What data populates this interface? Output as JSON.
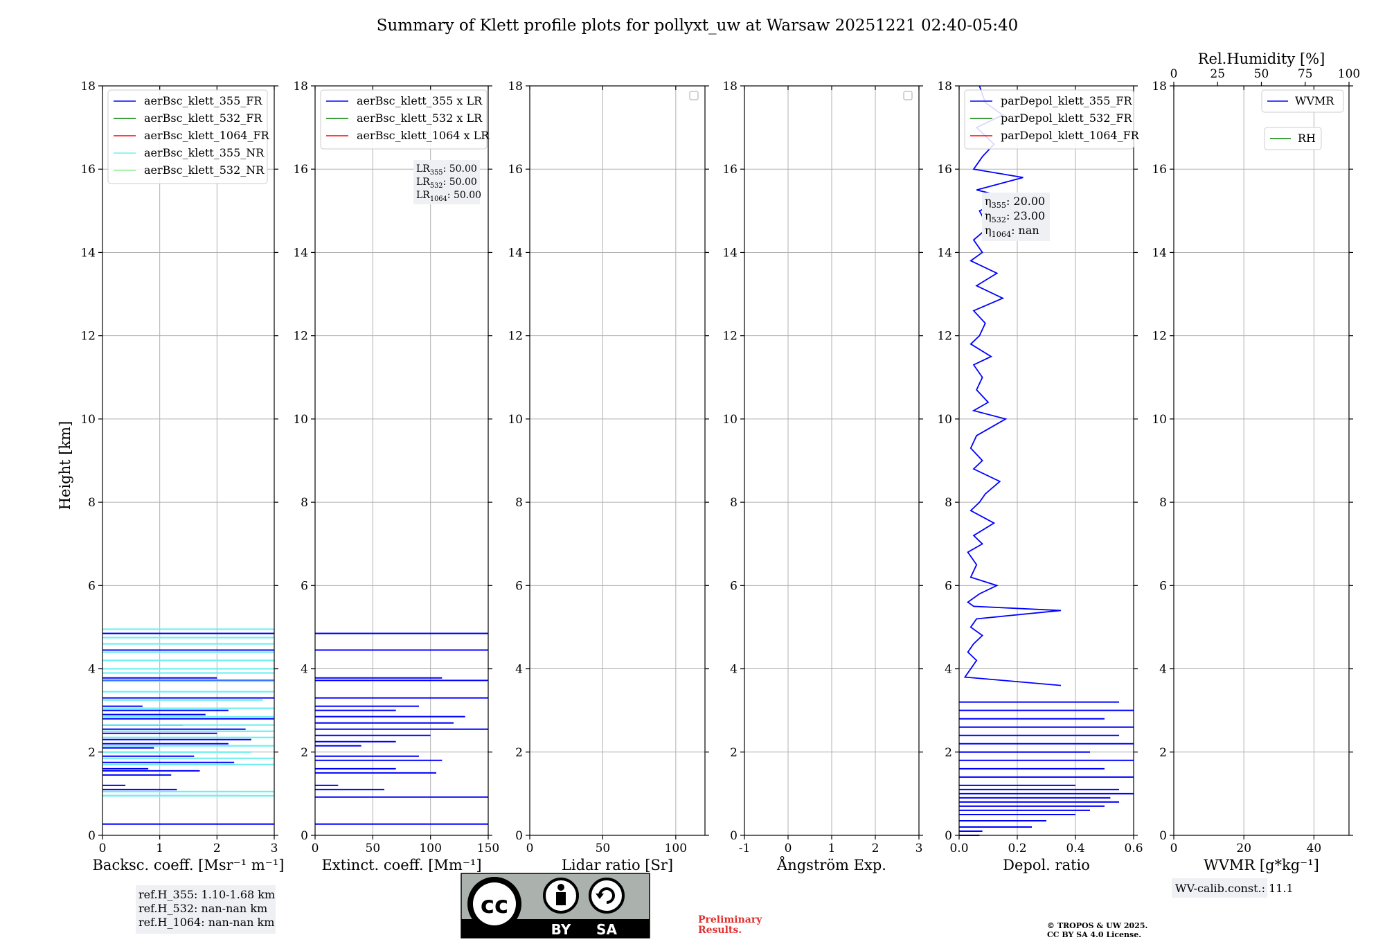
{
  "figure": {
    "title": "Summary of Klett profile plots for pollyxt_uw at Warsaw 20251221 02:40-05:40",
    "ylabel": "Height [km]"
  },
  "chart_data": [
    {
      "type": "line",
      "id": "backscatter",
      "xlabel": "Backsc. coeff. [Msr⁻¹ m⁻¹]",
      "xlim": [
        0,
        3
      ],
      "xticks": [
        0,
        1,
        2,
        3
      ],
      "ylim": [
        0,
        18
      ],
      "yticks": [
        0,
        2,
        4,
        6,
        8,
        10,
        12,
        14,
        16,
        18
      ],
      "legend": [
        "aerBsc_klett_355_FR",
        "aerBsc_klett_532_FR",
        "aerBsc_klett_1064_FR",
        "aerBsc_klett_355_NR",
        "aerBsc_klett_532_NR"
      ],
      "series": [
        {
          "name": "aerBsc_klett_355_FR",
          "color": "#0000ff",
          "y": [
            0.27,
            0.95,
            1.1,
            1.2,
            1.45,
            1.55,
            1.6,
            1.75,
            1.9,
            2.1,
            2.2,
            2.3,
            2.45,
            2.55,
            2.65,
            2.8,
            2.9,
            3.0,
            3.1,
            3.3,
            3.72,
            3.78,
            4.45,
            4.85
          ],
          "x": [
            3.0,
            2.4,
            1.3,
            0.4,
            1.2,
            1.7,
            0.8,
            2.3,
            1.6,
            0.9,
            2.2,
            2.6,
            2.0,
            2.5,
            1.4,
            3.0,
            1.8,
            2.2,
            0.7,
            3.0,
            3.0,
            2.0,
            3.0,
            3.0
          ]
        },
        {
          "name": "aerBsc_klett_532_FR",
          "color": "#008000",
          "y": [],
          "x": []
        },
        {
          "name": "aerBsc_klett_1064_FR",
          "color": "#ff0000",
          "y": [],
          "x": []
        },
        {
          "name": "aerBsc_klett_355_NR",
          "color": "#6ef0f0",
          "y": [
            0.95,
            1.05,
            1.7,
            1.85,
            2.0,
            2.15,
            2.35,
            2.5,
            2.65,
            2.85,
            3.05,
            3.25,
            3.45,
            3.7,
            3.9,
            4.0,
            4.2,
            4.4,
            4.6,
            4.75,
            4.95
          ],
          "x": [
            3.0,
            3.0,
            3.0,
            3.0,
            2.6,
            3.0,
            3.0,
            3.0,
            3.0,
            3.0,
            3.0,
            2.8,
            3.0,
            3.0,
            3.0,
            3.0,
            3.0,
            3.0,
            3.0,
            3.0,
            3.0
          ]
        },
        {
          "name": "aerBsc_klett_532_NR",
          "color": "#90ee90",
          "y": [],
          "x": []
        }
      ],
      "note": {
        "lines": [
          "ref.H_355: 1.10-1.68 km",
          "ref.H_532: nan-nan km",
          "ref.H_1064: nan-nan km"
        ]
      }
    },
    {
      "type": "line",
      "id": "extinction",
      "xlabel": "Extinct. coeff. [Mm⁻¹]",
      "xlim": [
        0,
        150
      ],
      "xticks": [
        0,
        50,
        100,
        150
      ],
      "ylim": [
        0,
        18
      ],
      "yticks": [
        0,
        2,
        4,
        6,
        8,
        10,
        12,
        14,
        16,
        18
      ],
      "legend": [
        "aerBsc_klett_355 x LR",
        "aerBsc_klett_532 x LR",
        "aerBsc_klett_1064 x LR"
      ],
      "series": [
        {
          "name": "aerBsc_klett_355 x LR",
          "color": "#0000ff",
          "y": [
            0.27,
            0.92,
            1.1,
            1.2,
            1.5,
            1.6,
            1.8,
            1.9,
            2.15,
            2.25,
            2.4,
            2.55,
            2.7,
            2.85,
            3.0,
            3.1,
            3.3,
            3.72,
            3.78,
            4.45,
            4.85
          ],
          "x": [
            150,
            150,
            60,
            20,
            105,
            70,
            110,
            90,
            40,
            70,
            100,
            150,
            120,
            130,
            70,
            90,
            150,
            150,
            110,
            150,
            150
          ]
        },
        {
          "name": "aerBsc_klett_532 x LR",
          "color": "#008000",
          "y": [],
          "x": []
        },
        {
          "name": "aerBsc_klett_1064 x LR",
          "color": "#ff0000",
          "y": [],
          "x": []
        }
      ],
      "note": {
        "lines": [
          "LR355: 50.00",
          "LR532: 50.00",
          "LR1064: 50.00"
        ]
      }
    },
    {
      "type": "line",
      "id": "lidar_ratio",
      "xlabel": "Lidar ratio [Sr]",
      "xlim": [
        0,
        120
      ],
      "xticks": [
        0,
        50,
        100
      ],
      "ylim": [
        0,
        18
      ],
      "yticks": [
        0,
        2,
        4,
        6,
        8,
        10,
        12,
        14,
        16,
        18
      ],
      "legend": [],
      "series": []
    },
    {
      "type": "line",
      "id": "angstrom",
      "xlabel": "Ångström Exp.",
      "xlim": [
        -1,
        3
      ],
      "xticks": [
        -1,
        0,
        1,
        2,
        3
      ],
      "ylim": [
        0,
        18
      ],
      "yticks": [
        0,
        2,
        4,
        6,
        8,
        10,
        12,
        14,
        16,
        18
      ],
      "legend": [],
      "series": []
    },
    {
      "type": "line",
      "id": "depol",
      "xlabel": "Depol. ratio",
      "xlim": [
        0,
        0.6
      ],
      "xticks": [
        0.0,
        0.2,
        0.4,
        0.6
      ],
      "xtick_labels": [
        "0.0",
        "0.2",
        "0.4",
        "0.6"
      ],
      "ylim": [
        0,
        18
      ],
      "yticks": [
        0,
        2,
        4,
        6,
        8,
        10,
        12,
        14,
        16,
        18
      ],
      "legend": [
        "parDepol_klett_355_FR",
        "parDepol_klett_532_FR",
        "parDepol_klett_1064_FR"
      ],
      "series": [
        {
          "name": "parDepol_klett_355_FR",
          "color": "#0000ff",
          "y": [
            0.0,
            0.1,
            0.2,
            0.35,
            0.5,
            0.6,
            0.7,
            0.8,
            0.9,
            1.0,
            1.1,
            1.2,
            1.4,
            1.6,
            1.8,
            2.0,
            2.2,
            2.4,
            2.6,
            2.8,
            3.0,
            3.2,
            3.6,
            3.8,
            4.0,
            4.2,
            4.4,
            4.6,
            4.8,
            5.0,
            5.2,
            5.4,
            5.5,
            5.6,
            5.8,
            6.0,
            6.2,
            6.5,
            6.8,
            7.0,
            7.2,
            7.5,
            7.8,
            8.0,
            8.2,
            8.5,
            8.8,
            9.0,
            9.3,
            9.6,
            10.0,
            10.2,
            10.4,
            10.7,
            11.0,
            11.3,
            11.5,
            11.8,
            12.0,
            12.3,
            12.6,
            12.9,
            13.2,
            13.5,
            13.8,
            14.0,
            14.3,
            14.6,
            15.0,
            15.3,
            15.5,
            15.8,
            16.0,
            16.3,
            16.6,
            17.0,
            17.3,
            17.6,
            18.0
          ],
          "x": [
            0.07,
            0.08,
            0.25,
            0.3,
            0.4,
            0.45,
            0.5,
            0.55,
            0.52,
            0.6,
            0.55,
            0.4,
            0.6,
            0.5,
            0.6,
            0.45,
            0.6,
            0.55,
            0.6,
            0.5,
            0.6,
            0.55,
            0.35,
            0.02,
            0.04,
            0.06,
            0.03,
            0.05,
            0.08,
            0.04,
            0.06,
            0.35,
            0.05,
            0.03,
            0.07,
            0.13,
            0.04,
            0.06,
            0.03,
            0.08,
            0.05,
            0.12,
            0.04,
            0.07,
            0.09,
            0.14,
            0.05,
            0.08,
            0.04,
            0.06,
            0.16,
            0.05,
            0.1,
            0.06,
            0.08,
            0.05,
            0.11,
            0.04,
            0.07,
            0.09,
            0.05,
            0.15,
            0.06,
            0.13,
            0.04,
            0.08,
            0.05,
            0.1,
            0.07,
            0.18,
            0.06,
            0.22,
            0.05,
            0.08,
            0.12,
            0.06,
            0.15,
            0.09,
            0.07
          ]
        },
        {
          "name": "parDepol_klett_532_FR",
          "color": "#008000",
          "y": [],
          "x": []
        },
        {
          "name": "parDepol_klett_1064_FR",
          "color": "#ff0000",
          "y": [],
          "x": []
        }
      ],
      "note": {
        "lines": [
          "η355: 20.00",
          "η532: 23.00",
          "η1064: nan"
        ]
      }
    },
    {
      "type": "line",
      "id": "wvmr",
      "xlabel": "WVMR [g*kg⁻¹]",
      "xlim": [
        0,
        50
      ],
      "xticks": [
        0,
        20,
        40
      ],
      "ylim": [
        0,
        18
      ],
      "yticks": [
        0,
        2,
        4,
        6,
        8,
        10,
        12,
        14,
        16,
        18
      ],
      "top_xlabel": "Rel.Humidity [%]",
      "top_xlim": [
        0,
        100
      ],
      "top_xticks": [
        0,
        25,
        50,
        75,
        100
      ],
      "legend": [
        "WVMR",
        "RH"
      ],
      "series": [
        {
          "name": "WVMR",
          "color": "#0000ff",
          "y": [],
          "x": []
        },
        {
          "name": "RH",
          "color": "#008000",
          "y": [],
          "x": []
        }
      ],
      "note": {
        "lines": [
          "WV-calib.const.: 11.1"
        ]
      }
    }
  ],
  "footer": {
    "license_badge": {
      "cc": "cc",
      "by": "BY",
      "sa": "SA"
    },
    "preliminary": [
      "Preliminary",
      "Results."
    ],
    "copyright": [
      "© TROPOS & UW 2025.",
      "CC BY SA 4.0 License."
    ]
  },
  "colors": {
    "blue": "#0000ff",
    "green": "#008000",
    "red": "#ff0000",
    "cyan": "#6ef0f0",
    "lightgreen": "#90ee90",
    "prelim": "#e03030"
  }
}
